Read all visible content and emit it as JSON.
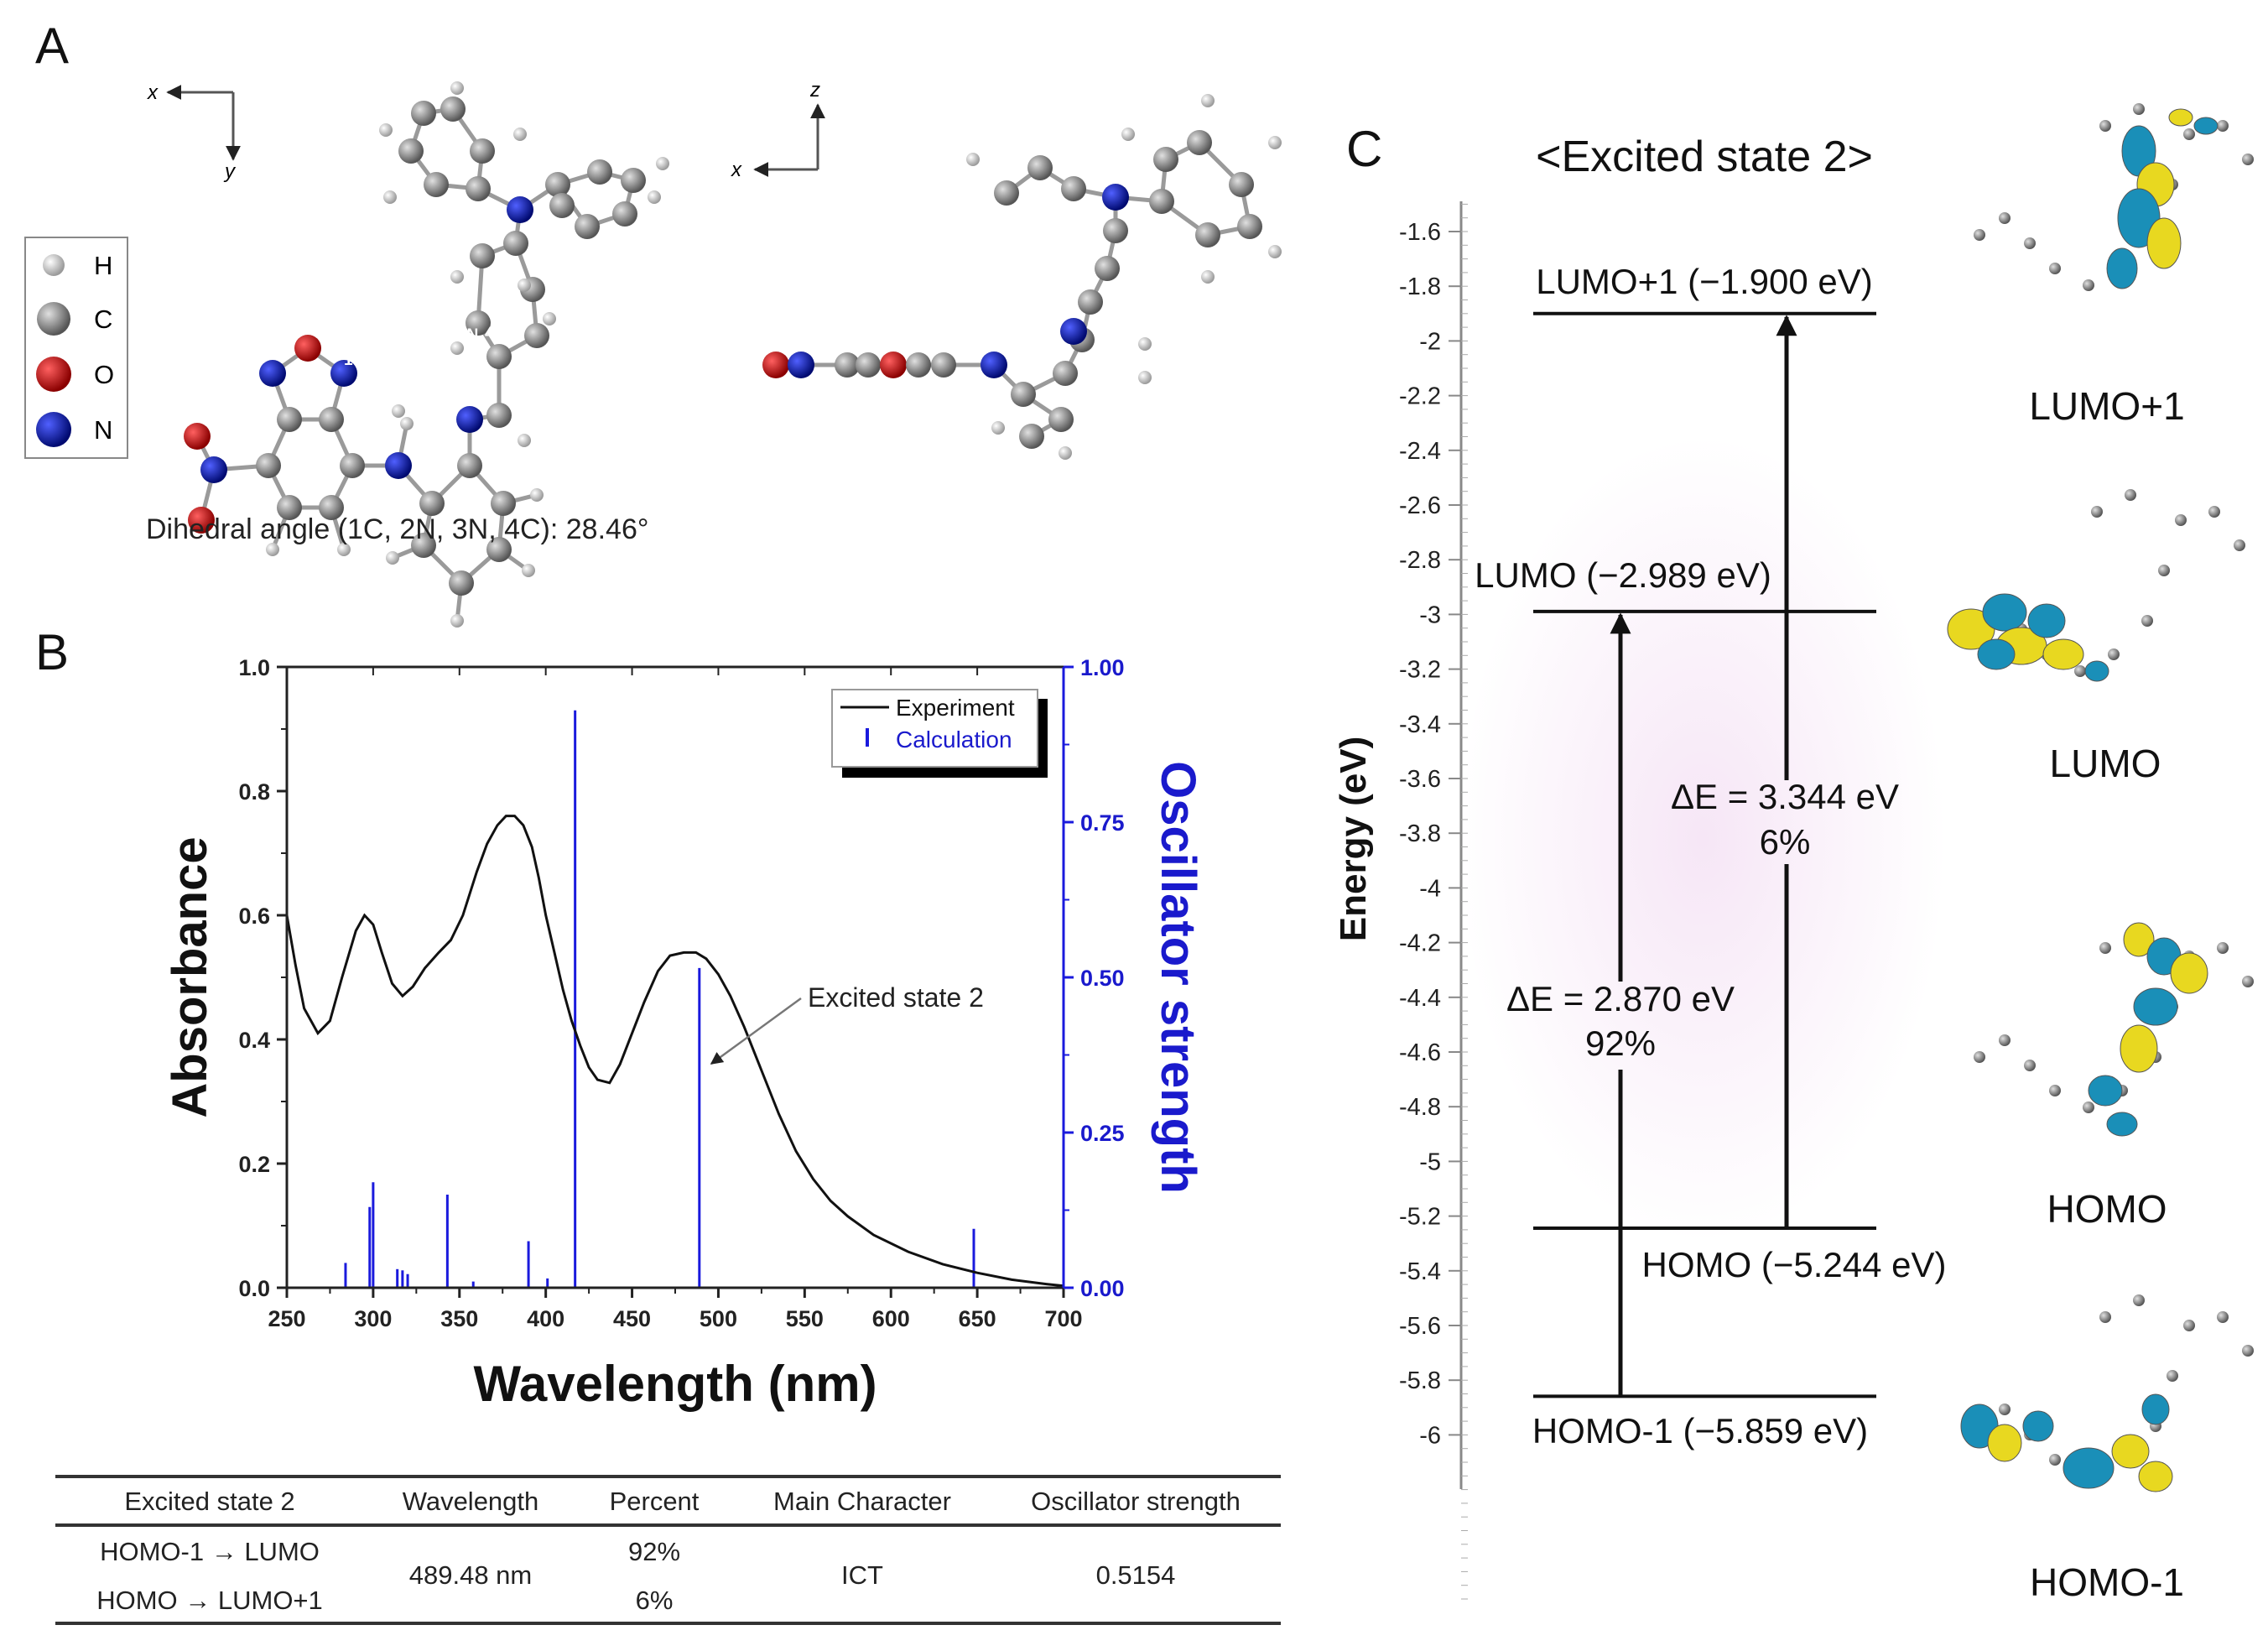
{
  "panel_a": {
    "letter": "A",
    "axes_left": {
      "horizontal": "x",
      "vertical": "y"
    },
    "axes_right": {
      "horizontal": "x",
      "vertical": "z"
    },
    "legend": [
      "H",
      "C",
      "O",
      "N"
    ],
    "atom_labels": [
      "1C",
      "2N",
      "3N",
      "4C"
    ],
    "caption": "Dihedral angle (1C, 2N, 3N, 4C): 28.46°",
    "colors": {
      "H": "#d8d8d8",
      "C": "#8a8a8a",
      "O": "#cc1111",
      "N": "#1020b0"
    }
  },
  "panel_b": {
    "letter": "B",
    "annotation": "Excited state 2"
  },
  "chart_data": {
    "type": "line",
    "xlabel": "Wavelength (nm)",
    "ylabel": "Absorbance",
    "y2label": "Oscillator strength",
    "xlim": [
      250,
      700
    ],
    "ylim": [
      0,
      1.0
    ],
    "y2lim": [
      0,
      1.0
    ],
    "xticks": [
      "250",
      "300",
      "350",
      "400",
      "450",
      "500",
      "550",
      "600",
      "650",
      "700"
    ],
    "yticks": [
      "0.0",
      "0.2",
      "0.4",
      "0.6",
      "0.8",
      "1.0"
    ],
    "y2ticks": [
      "0.00",
      "0.25",
      "0.50",
      "0.75",
      "1.00"
    ],
    "legend": {
      "position": "top-right",
      "entries": [
        "Experiment",
        "Calculation"
      ]
    },
    "series": [
      {
        "name": "Experiment",
        "type": "line",
        "color": "#111111",
        "x": [
          250,
          255,
          260,
          268,
          275,
          282,
          290,
          295,
          300,
          305,
          311,
          317,
          323,
          330,
          338,
          345,
          352,
          360,
          366,
          372,
          377,
          382,
          387,
          392,
          396,
          400,
          405,
          410,
          415,
          420,
          425,
          430,
          437,
          443,
          450,
          457,
          465,
          472,
          480,
          487,
          493,
          500,
          507,
          515,
          525,
          535,
          545,
          555,
          565,
          575,
          590,
          610,
          630,
          650,
          670,
          690,
          700
        ],
        "y": [
          0.6,
          0.52,
          0.45,
          0.41,
          0.43,
          0.5,
          0.575,
          0.6,
          0.585,
          0.54,
          0.49,
          0.47,
          0.485,
          0.515,
          0.54,
          0.56,
          0.6,
          0.67,
          0.715,
          0.745,
          0.76,
          0.76,
          0.745,
          0.71,
          0.66,
          0.6,
          0.54,
          0.48,
          0.43,
          0.39,
          0.355,
          0.335,
          0.33,
          0.36,
          0.41,
          0.46,
          0.51,
          0.535,
          0.54,
          0.54,
          0.53,
          0.505,
          0.47,
          0.42,
          0.35,
          0.28,
          0.22,
          0.175,
          0.14,
          0.115,
          0.085,
          0.058,
          0.038,
          0.024,
          0.013,
          0.006,
          0.003
        ]
      },
      {
        "name": "Calculation",
        "type": "stick",
        "color": "#1a1add",
        "x": [
          284,
          298,
          300,
          314,
          317,
          320,
          343,
          358,
          390,
          401,
          417,
          489,
          648
        ],
        "y": [
          0.04,
          0.13,
          0.17,
          0.03,
          0.028,
          0.022,
          0.15,
          0.01,
          0.075,
          0.015,
          0.93,
          0.515,
          0.095
        ]
      }
    ]
  },
  "table": {
    "headers": [
      "Excited state 2",
      "Wavelength",
      "Percent",
      "Main Character",
      "Oscillator strength"
    ],
    "transitions": [
      "HOMO-1 → LUMO",
      "HOMO → LUMO+1"
    ],
    "wavelength": "489.48 nm",
    "percents": [
      "92%",
      "6%"
    ],
    "main_character": "ICT",
    "oscillator_strength": "0.5154"
  },
  "panel_c": {
    "letter": "C",
    "title": "<Excited state 2>",
    "ylabel": "Energy (eV)",
    "yticks": [
      "-1.6",
      "-1.8",
      "-2",
      "-2.2",
      "-2.4",
      "-2.6",
      "-2.8",
      "-3",
      "-3.2",
      "-3.4",
      "-3.6",
      "-3.8",
      "-4",
      "-4.2",
      "-4.4",
      "-4.6",
      "-4.8",
      "-5",
      "-5.2",
      "-5.4",
      "-5.6",
      "-5.8",
      "-6"
    ],
    "levels": [
      {
        "name": "LUMO+1",
        "energy": -1.9,
        "label": "LUMO+1 (−1.900 eV)"
      },
      {
        "name": "LUMO",
        "energy": -2.989,
        "label": "LUMO (−2.989 eV)"
      },
      {
        "name": "HOMO",
        "energy": -5.244,
        "label": "HOMO (−5.244 eV)"
      },
      {
        "name": "HOMO-1",
        "energy": -5.859,
        "label": "HOMO-1 (−5.859 eV)"
      }
    ],
    "transitions": [
      {
        "from": "HOMO-1",
        "to": "LUMO",
        "delta": "ΔE = 2.870 eV",
        "percent": "92%"
      },
      {
        "from": "HOMO",
        "to": "LUMO+1",
        "delta": "ΔE = 3.344 eV",
        "percent": "6%"
      }
    ],
    "orbital_labels": [
      "LUMO+1",
      "LUMO",
      "HOMO",
      "HOMO-1"
    ],
    "orbital_colors": {
      "positive": "#e8d820",
      "negative": "#1a8fb8"
    }
  }
}
